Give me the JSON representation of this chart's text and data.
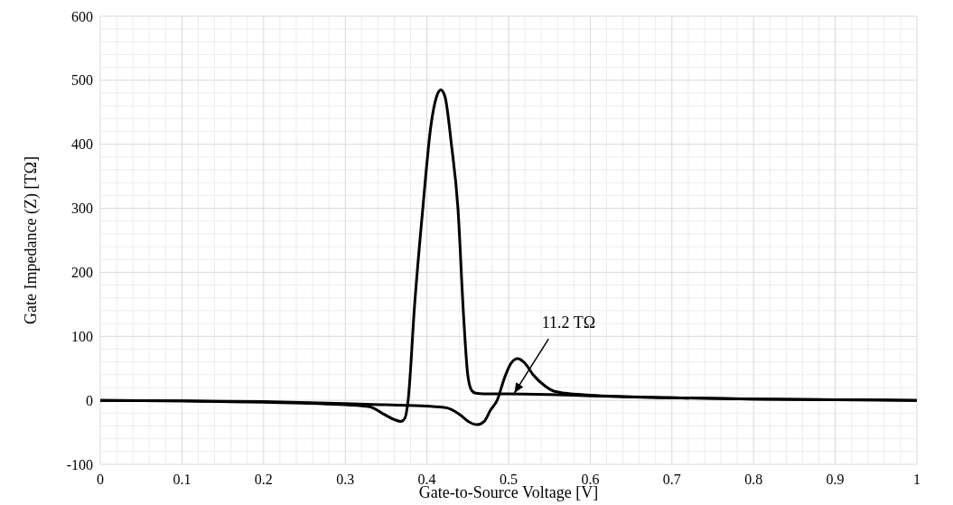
{
  "chart_data": {
    "type": "line",
    "xlabel": "Gate-to-Source Voltage [V]",
    "ylabel": "Gate Impedance (Z) [TΩ]",
    "xlim": [
      0,
      1
    ],
    "ylim": [
      -100,
      600
    ],
    "xticks": [
      0,
      0.1,
      0.2,
      0.3,
      0.4,
      0.5,
      0.6,
      0.7,
      0.8,
      0.9,
      1
    ],
    "yticks": [
      -100,
      0,
      100,
      200,
      300,
      400,
      500,
      600
    ],
    "grid": true,
    "marker": "none",
    "line_style": "solid",
    "series": [
      {
        "color": "#000000",
        "x": [
          0,
          0.1,
          0.2,
          0.3,
          0.33,
          0.345,
          0.36,
          0.368,
          0.373,
          0.377,
          0.385,
          0.395,
          0.405,
          0.412,
          0.417,
          0.422,
          0.43,
          0.438,
          0.445,
          0.45,
          0.455,
          0.46,
          0.47,
          0.5,
          0.55,
          0.6,
          0.7,
          0.8,
          0.9,
          1
        ],
        "values": [
          0,
          -1,
          -3,
          -7,
          -10,
          -20,
          -30,
          -33,
          -28,
          0,
          150,
          300,
          430,
          475,
          485,
          475,
          400,
          300,
          130,
          40,
          15,
          11,
          10,
          10,
          9,
          7,
          4,
          2,
          1,
          0
        ]
      },
      {
        "color": "#000000",
        "x": [
          0,
          0.1,
          0.2,
          0.3,
          0.35,
          0.4,
          0.425,
          0.44,
          0.452,
          0.461,
          0.47,
          0.478,
          0.486,
          0.495,
          0.503,
          0.511,
          0.52,
          0.53,
          0.545,
          0.554,
          0.57,
          0.6,
          0.7,
          0.8,
          0.9,
          1
        ],
        "values": [
          0,
          -1,
          -2,
          -5,
          -7,
          -9,
          -12,
          -22,
          -34,
          -38,
          -33,
          -15,
          0,
          35,
          58,
          65,
          58,
          40,
          22,
          15,
          11,
          8,
          4,
          2,
          1,
          0
        ]
      }
    ],
    "annotations": [
      {
        "text": "11.2 TΩ",
        "x": 0.507,
        "y": 11.2
      }
    ]
  }
}
